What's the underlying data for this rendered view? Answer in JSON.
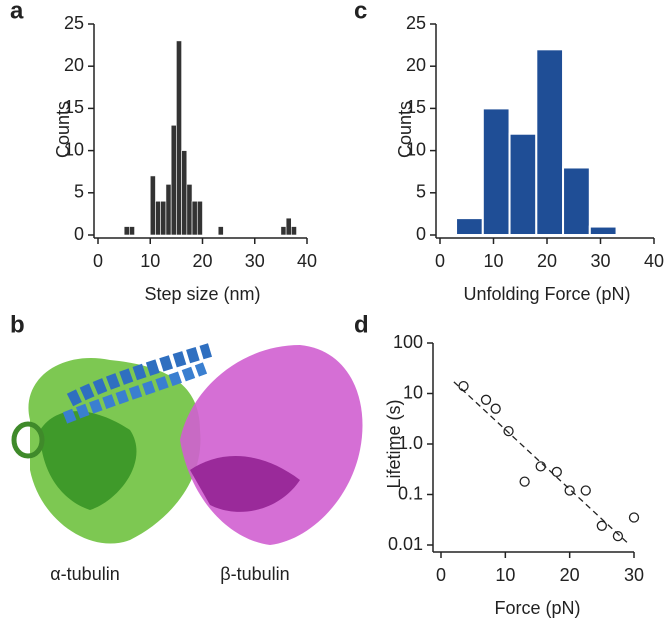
{
  "chart_data": [
    {
      "panel": "a",
      "type": "histogram",
      "xlabel": "Step size (nm)",
      "ylabel": "Counts",
      "color": "#333333",
      "bins": [
        5,
        6,
        7,
        8,
        9,
        10,
        11,
        12,
        13,
        14,
        15,
        16,
        17,
        18,
        19,
        20,
        21,
        22,
        23,
        24,
        25,
        26,
        27,
        28,
        29,
        30,
        31,
        32,
        33,
        34,
        35,
        36,
        37,
        38
      ],
      "values": [
        1,
        1,
        0,
        0,
        0,
        7,
        4,
        4,
        6,
        13,
        23,
        10,
        6,
        4,
        4,
        0,
        0,
        0,
        1,
        0,
        0,
        0,
        0,
        0,
        0,
        0,
        0,
        0,
        0,
        0,
        1,
        2,
        1
      ],
      "xlim": [
        0,
        40
      ],
      "xticks": [
        0,
        10,
        20,
        30,
        40
      ],
      "ylim": [
        0,
        25
      ],
      "yticks": [
        0,
        5,
        10,
        15,
        20,
        25
      ]
    },
    {
      "panel": "c",
      "type": "histogram",
      "xlabel": "Unfolding Force (pN)",
      "ylabel": "Counts",
      "color": "#1f4e96",
      "bins": [
        3,
        8,
        13,
        18,
        23,
        28,
        33
      ],
      "values": [
        2,
        15,
        12,
        22,
        8,
        1
      ],
      "xlim": [
        0,
        40
      ],
      "xticks": [
        0,
        10,
        20,
        30,
        40
      ],
      "ylim": [
        0,
        25
      ],
      "yticks": [
        0,
        5,
        10,
        15,
        20,
        25
      ]
    },
    {
      "panel": "d",
      "type": "scatter",
      "xlabel": "Force (pN)",
      "ylabel": "Lifetime (s)",
      "log_y": true,
      "color": "#222222",
      "x": [
        3.5,
        7,
        8.5,
        10.5,
        13,
        15.5,
        18,
        20,
        22.5,
        25,
        27.5,
        30
      ],
      "y": [
        14,
        7.5,
        5,
        1.8,
        0.18,
        0.36,
        0.28,
        0.12,
        0.12,
        0.024,
        0.015,
        0.035
      ],
      "fit": {
        "x": [
          2,
          29
        ],
        "y": [
          17,
          0.011
        ]
      },
      "xlim": [
        0,
        30
      ],
      "xticks": [
        0,
        10,
        20,
        30
      ],
      "ylim": [
        0.01,
        100
      ],
      "yticks": [
        100,
        10,
        {
          "value": 1,
          "label": "1.0"
        },
        0.1,
        0.01
      ]
    }
  ],
  "image": {
    "panel": "b",
    "labels": [
      "α-tubulin",
      "β-tubulin"
    ]
  }
}
